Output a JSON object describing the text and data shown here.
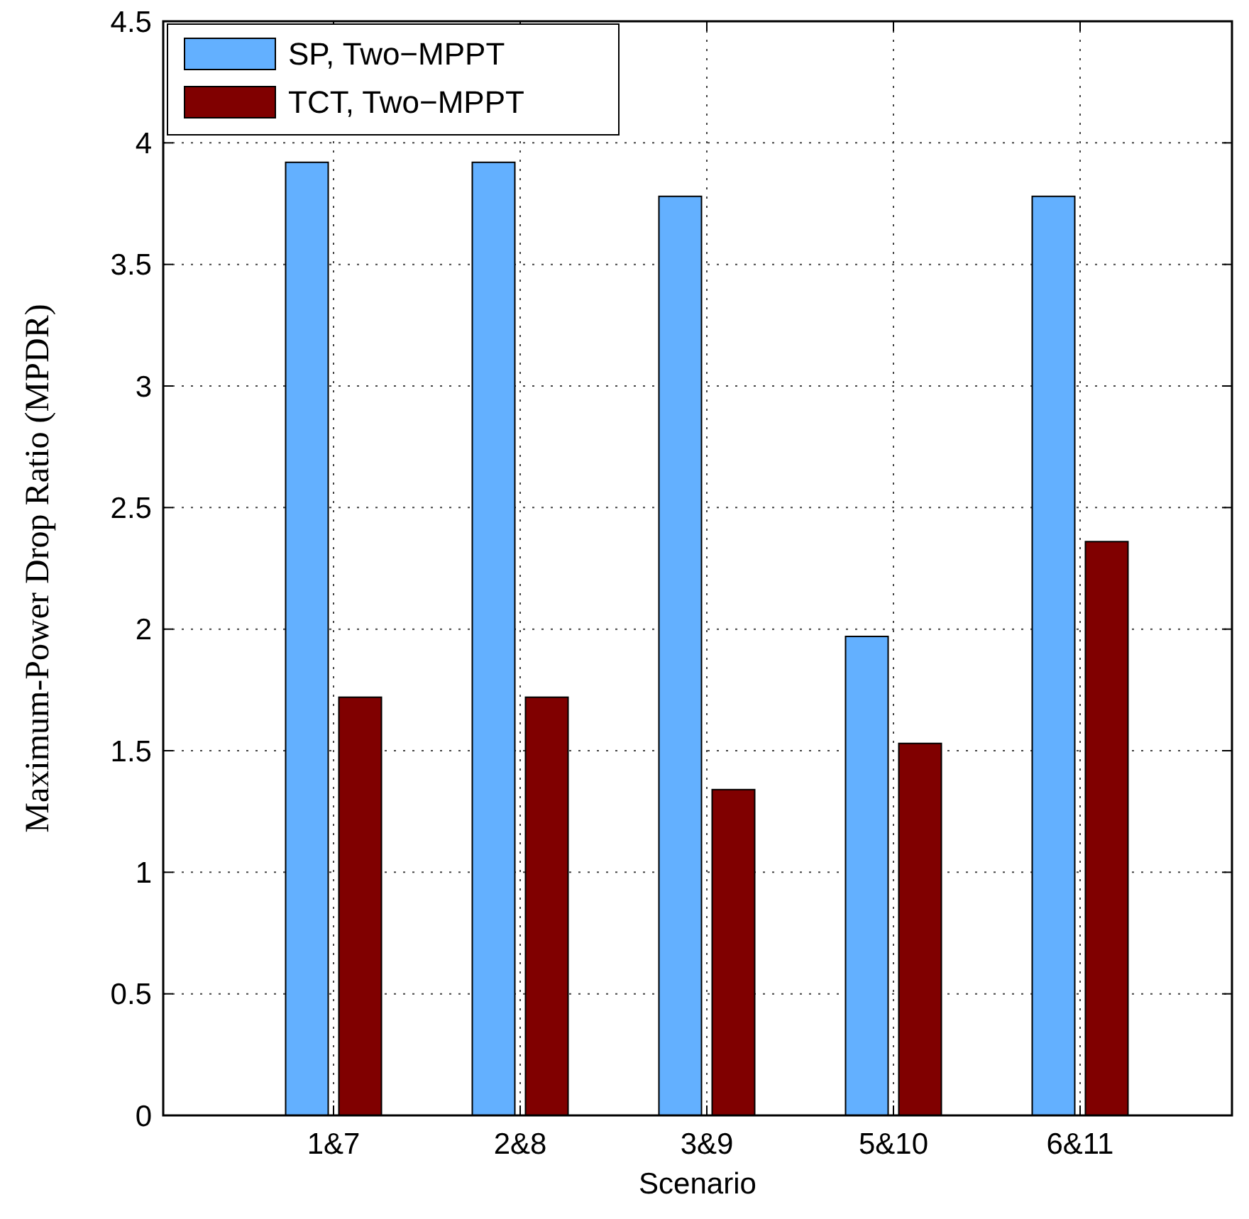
{
  "chart_data": {
    "type": "bar",
    "xlabel": "Scenario",
    "ylabel": "Maximum-Power Drop Ratio (MPDR)",
    "categories": [
      "1&7",
      "2&8",
      "3&9",
      "5&10",
      "6&11"
    ],
    "series": [
      {
        "name": "SP, Two−MPPT",
        "color": "#63b0ff",
        "values": [
          3.92,
          3.92,
          3.78,
          1.97,
          3.78
        ]
      },
      {
        "name": "TCT, Two−MPPT",
        "color": "#800000",
        "values": [
          1.72,
          1.72,
          1.34,
          1.53,
          2.36
        ]
      }
    ],
    "ylim": [
      0,
      4.5
    ],
    "yticks": [
      0,
      0.5,
      1,
      1.5,
      2,
      2.5,
      3,
      3.5,
      4,
      4.5
    ],
    "grid": true,
    "legend": "top left"
  }
}
